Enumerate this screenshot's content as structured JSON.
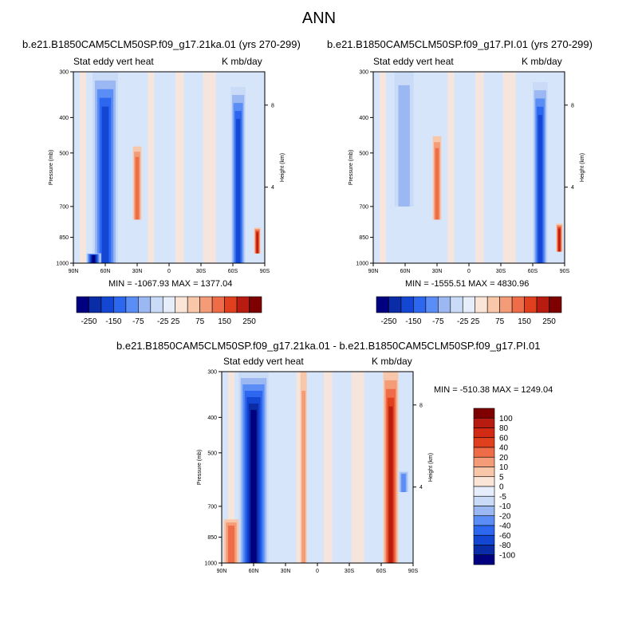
{
  "main_title": "ANN",
  "colors": {
    "sequential": [
      "#000080",
      "#0a2ca6",
      "#1446d4",
      "#2d67f0",
      "#5a8df5",
      "#9bb8f2",
      "#c9dbf7",
      "#e6eefb",
      "#fbe5d6",
      "#f8c6a8",
      "#f49b78",
      "#ee6c48",
      "#e1401e",
      "#b81c10",
      "#7f0000"
    ]
  },
  "panels": [
    {
      "title": "b.e21.B1850CAM5CLM50SP.f09_g17.21ka.01 (yrs 270-299)",
      "left_label": "Stat eddy vert heat",
      "right_label": "K mb/day",
      "minmax": "MIN = -1067.93   MAX = 1377.04",
      "y_axis_label": "Pressure (mb)",
      "y2_axis_label": "Height (km)"
    },
    {
      "title": "b.e21.B1850CAM5CLM50SP.f09_g17.PI.01 (yrs 270-299)",
      "left_label": "Stat eddy vert heat",
      "right_label": "K mb/day",
      "minmax": "MIN = -1555.51   MAX = 4830.96",
      "y_axis_label": "Pressure (mb)",
      "y2_axis_label": "Height (km)"
    },
    {
      "title": "b.e21.B1850CAM5CLM50SP.f09_g17.21ka.01 - b.e21.B1850CAM5CLM50SP.f09_g17.PI.01",
      "left_label": "Stat eddy vert heat",
      "right_label": "K mb/day",
      "minmax": "MIN = -510.38   MAX = 1249.04",
      "y_axis_label": "Pressure (mb)",
      "y2_axis_label": "Height (km)"
    }
  ],
  "chart_data": [
    {
      "type": "heatmap",
      "x_ticks": [
        "90N",
        "60N",
        "30N",
        "0",
        "30S",
        "60S",
        "90S"
      ],
      "x_values": [
        90,
        60,
        30,
        0,
        -30,
        -60,
        -90
      ],
      "y_ticks": [
        "300",
        "400",
        "500",
        "700",
        "850",
        "1000"
      ],
      "y_values": [
        300,
        400,
        500,
        700,
        850,
        1000
      ],
      "y_scale": "log",
      "y2_ticks": [
        "8",
        "4"
      ],
      "colorbar_labels": [
        "-250",
        "-150",
        "-75",
        "-25",
        "25",
        "75",
        "150",
        "250"
      ],
      "min": -1067.93,
      "max": 1377.04,
      "features": [
        {
          "lat_from": 72,
          "lat_to": 48,
          "p_from": 300,
          "p_to": 1000,
          "sign": "negative",
          "strength": "strong"
        },
        {
          "lat_from": 78,
          "lat_to": 64,
          "p_from": 940,
          "p_to": 1000,
          "sign": "negative",
          "strength": "very strong"
        },
        {
          "lat_from": 34,
          "lat_to": 26,
          "p_from": 480,
          "p_to": 760,
          "sign": "positive",
          "strength": "moderate"
        },
        {
          "lat_from": -58,
          "lat_to": -72,
          "p_from": 330,
          "p_to": 1000,
          "sign": "negative",
          "strength": "strong"
        },
        {
          "lat_from": -80,
          "lat_to": -86,
          "p_from": 800,
          "p_to": 940,
          "sign": "positive",
          "strength": "strong"
        }
      ]
    },
    {
      "type": "heatmap",
      "x_ticks": [
        "90N",
        "60N",
        "30N",
        "0",
        "30S",
        "60S",
        "90S"
      ],
      "x_values": [
        90,
        60,
        30,
        0,
        -30,
        -60,
        -90
      ],
      "y_ticks": [
        "300",
        "400",
        "500",
        "700",
        "850",
        "1000"
      ],
      "y_values": [
        300,
        400,
        500,
        700,
        850,
        1000
      ],
      "y_scale": "log",
      "y2_ticks": [
        "8",
        "4"
      ],
      "colorbar_labels": [
        "-250",
        "-150",
        "-75",
        "-25",
        "25",
        "75",
        "150",
        "250"
      ],
      "min": -1555.51,
      "max": 4830.96,
      "features": [
        {
          "lat_from": 70,
          "lat_to": 52,
          "p_from": 300,
          "p_to": 700,
          "sign": "negative",
          "strength": "weak"
        },
        {
          "lat_from": 34,
          "lat_to": 26,
          "p_from": 450,
          "p_to": 760,
          "sign": "positive",
          "strength": "moderate"
        },
        {
          "lat_from": -60,
          "lat_to": -74,
          "p_from": 320,
          "p_to": 1000,
          "sign": "negative",
          "strength": "strong"
        },
        {
          "lat_from": -82,
          "lat_to": -88,
          "p_from": 780,
          "p_to": 930,
          "sign": "positive",
          "strength": "strong"
        }
      ]
    },
    {
      "type": "heatmap",
      "x_ticks": [
        "90N",
        "60N",
        "30N",
        "0",
        "30S",
        "60S",
        "90S"
      ],
      "x_values": [
        90,
        60,
        30,
        0,
        -30,
        -60,
        -90
      ],
      "y_ticks": [
        "300",
        "400",
        "500",
        "700",
        "850",
        "1000"
      ],
      "y_values": [
        300,
        400,
        500,
        700,
        850,
        1000
      ],
      "y_scale": "log",
      "y2_ticks": [
        "8",
        "4"
      ],
      "colorbar_labels": [
        "100",
        "80",
        "60",
        "40",
        "20",
        "10",
        "5",
        "0",
        "-5",
        "-10",
        "-20",
        "-40",
        "-60",
        "-80",
        "-100"
      ],
      "colorbar_orientation": "vertical",
      "min": -510.38,
      "max": 1249.04,
      "features": [
        {
          "lat_from": 74,
          "lat_to": 46,
          "p_from": 300,
          "p_to": 1000,
          "sign": "negative",
          "strength": "very strong"
        },
        {
          "lat_from": 88,
          "lat_to": 74,
          "p_from": 760,
          "p_to": 1000,
          "sign": "positive",
          "strength": "moderate"
        },
        {
          "lat_from": 16,
          "lat_to": 10,
          "p_from": 300,
          "p_to": 1000,
          "sign": "positive",
          "strength": "weak"
        },
        {
          "lat_from": -62,
          "lat_to": -76,
          "p_from": 300,
          "p_to": 1000,
          "sign": "positive",
          "strength": "strong"
        },
        {
          "lat_from": -76,
          "lat_to": -86,
          "p_from": 560,
          "p_to": 640,
          "sign": "negative",
          "strength": "moderate"
        }
      ]
    }
  ]
}
